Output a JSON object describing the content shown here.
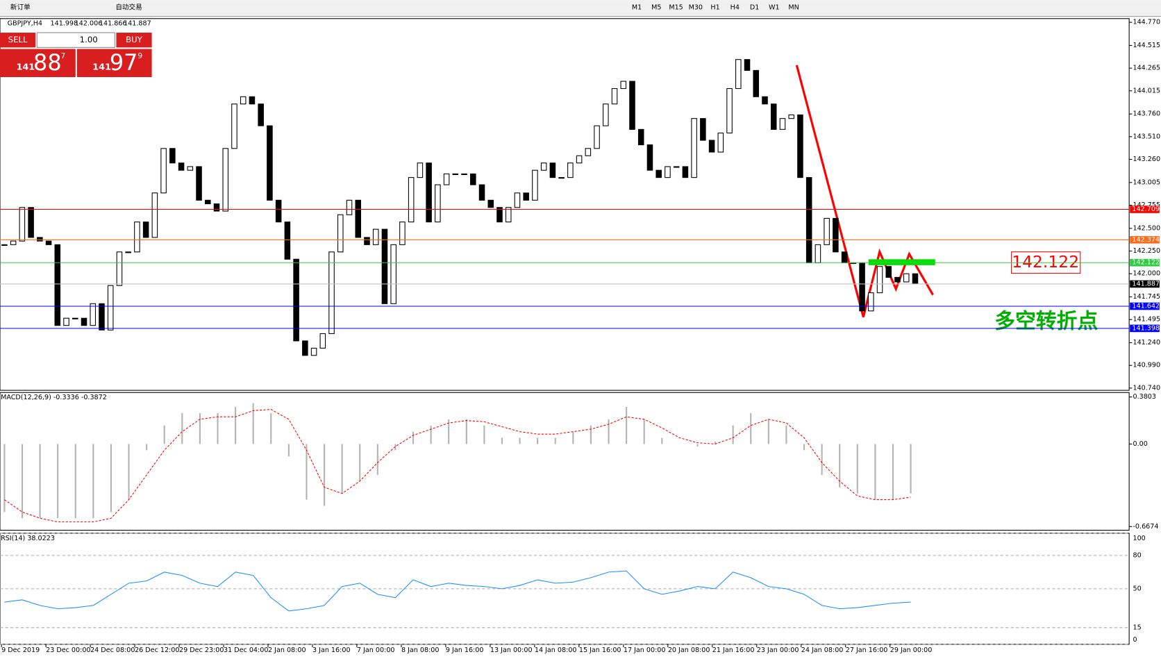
{
  "toolbar": {
    "buttons": [
      "新订单",
      "自动交易"
    ],
    "periods": [
      "M1",
      "M5",
      "M15",
      "M30",
      "H1",
      "H4",
      "D1",
      "W1",
      "MN"
    ]
  },
  "trade_panel": {
    "sell_label": "SELL",
    "lot": "1.00",
    "buy_label": "BUY",
    "sell": [
      "141",
      "88",
      "7"
    ],
    "buy": [
      "141",
      "97",
      "9"
    ]
  },
  "chart_data": {
    "type": "candlestick",
    "symbol": "GBPJPY,H4",
    "ohlc": [
      141.998,
      142.006,
      141.866,
      141.887
    ],
    "closes": [
      142.32,
      142.36,
      142.73,
      142.4,
      142.36,
      142.32,
      141.43,
      141.51,
      141.51,
      141.43,
      141.67,
      141.38,
      141.87,
      142.24,
      142.24,
      142.57,
      142.4,
      142.89,
      143.38,
      143.22,
      143.14,
      143.18,
      142.81,
      142.77,
      142.69,
      143.38,
      143.87,
      143.95,
      143.87,
      143.63,
      142.81,
      142.57,
      142.16,
      141.26,
      141.1,
      141.18,
      141.34,
      142.24,
      142.65,
      142.81,
      142.4,
      142.32,
      142.49,
      141.67,
      142.32,
      142.57,
      143.06,
      143.22,
      142.57,
      142.98,
      143.1,
      143.1,
      143.1,
      142.98,
      142.81,
      142.73,
      142.57,
      142.73,
      142.89,
      142.81,
      143.14,
      143.22,
      143.06,
      143.06,
      143.22,
      143.3,
      143.38,
      143.63,
      143.87,
      144.04,
      144.12,
      143.59,
      143.42,
      143.14,
      143.06,
      143.18,
      143.18,
      143.06,
      143.71,
      143.47,
      143.34,
      143.55,
      144.04,
      144.36,
      144.24,
      143.95,
      143.87,
      143.59,
      143.71,
      143.75,
      143.06,
      142.12,
      142.32,
      142.61,
      142.24,
      142.12,
      142.12,
      141.59,
      141.79,
      142.08,
      141.96,
      141.91,
      142.0,
      141.887
    ],
    "ylim": [
      140.74,
      144.77
    ],
    "yticks": [
      {
        "value": 144.77,
        "label": "144.770"
      },
      144.515,
      144.265,
      144.015,
      {
        "value": 143.76,
        "label": "143.760"
      },
      {
        "value": 143.51,
        "label": "143.510"
      },
      {
        "value": 143.26,
        "label": "143.260"
      },
      143.005,
      142.755,
      {
        "value": 142.5,
        "label": "142.500"
      },
      {
        "value": 142.25,
        "label": "142.250"
      },
      {
        "value": 142,
        "label": "142.000"
      },
      141.745,
      141.495,
      {
        "value": 141.24,
        "label": "141.240"
      },
      {
        "value": 140.99,
        "label": "140.990"
      },
      {
        "value": 140.74,
        "label": "140.740"
      }
    ],
    "levels": [
      {
        "value": 142.709,
        "color": "#ff0000"
      },
      {
        "value": 142.374,
        "color": "#ff6a1a"
      },
      {
        "value": 142.122,
        "color": "#2ecc40"
      },
      {
        "value": 141.642,
        "color": "#0000ff"
      },
      {
        "value": 141.398,
        "color": "#0000ff"
      }
    ],
    "annotations": {
      "price": "142.122",
      "note": "多空转折点"
    },
    "x_labels": [
      "9 Dec 2019",
      "23 Dec 00:00",
      "24 Dec 08:00",
      "26 Dec 12:00",
      "29 Dec 23:00",
      "31 Dec 04:00",
      "2 Jan 08:00",
      "3 Jan 16:00",
      "7 Jan 00:00",
      "8 Jan 08:00",
      "9 Jan 16:00",
      "13 Jan 00:00",
      "14 Jan 08:00",
      "15 Jan 16:00",
      "17 Jan 00:00",
      "20 Jan 08:00",
      "21 Jan 16:00",
      "23 Jan 00:00",
      "24 Jan 08:00",
      "27 Jan 16:00",
      "29 Jan 00:00"
    ],
    "macd": {
      "title": "MACD(12,26,9) -0.3336 -0.3872",
      "ylim": [
        -0.6674,
        0.3803
      ],
      "yticks": [
        0.3803,
        {
          "value": 0,
          "label": "0.00"
        },
        -0.6674
      ],
      "histogram": [
        -0.55,
        -0.6,
        -0.6,
        -0.6,
        -0.6,
        -0.6,
        -0.55,
        -0.45,
        -0.05,
        0.15,
        0.25,
        0.25,
        0.25,
        0.3,
        0.33,
        0.25,
        -0.1,
        -0.45,
        -0.5,
        -0.4,
        -0.3,
        -0.25,
        -0.05,
        0.1,
        0.15,
        0.2,
        0.2,
        0.15,
        0.05,
        0.05,
        0.05,
        0.05,
        0.1,
        0.15,
        0.2,
        0.3,
        0.2,
        0.05,
        0,
        -0.02,
        0.02,
        0.15,
        0.25,
        0.2,
        0.15,
        -0.05,
        -0.25,
        -0.35,
        -0.4,
        -0.45,
        -0.45,
        -0.4
      ],
      "signal": [
        -0.45,
        -0.55,
        -0.6,
        -0.63,
        -0.63,
        -0.63,
        -0.6,
        -0.45,
        -0.25,
        -0.05,
        0.1,
        0.2,
        0.22,
        0.22,
        0.27,
        0.28,
        0.2,
        -0.05,
        -0.35,
        -0.4,
        -0.3,
        -0.15,
        -0.02,
        0.07,
        0.12,
        0.17,
        0.19,
        0.18,
        0.14,
        0.1,
        0.08,
        0.08,
        0.1,
        0.12,
        0.16,
        0.22,
        0.2,
        0.13,
        0.05,
        0.01,
        0,
        0.05,
        0.15,
        0.2,
        0.17,
        0.05,
        -0.15,
        -0.3,
        -0.42,
        -0.45,
        -0.45,
        -0.43
      ]
    },
    "rsi": {
      "title": "RSI(14) 38.0223",
      "ylim": [
        0,
        100
      ],
      "yticks": [
        100,
        80,
        50,
        15,
        0
      ],
      "values": [
        38,
        40,
        35,
        32,
        33,
        35,
        45,
        55,
        57,
        65,
        62,
        55,
        52,
        65,
        62,
        42,
        30,
        32,
        35,
        52,
        55,
        45,
        42,
        58,
        52,
        55,
        53,
        52,
        50,
        53,
        58,
        55,
        56,
        60,
        65,
        66,
        50,
        45,
        48,
        52,
        50,
        65,
        60,
        52,
        50,
        45,
        35,
        32,
        33,
        35,
        37,
        38
      ]
    }
  }
}
